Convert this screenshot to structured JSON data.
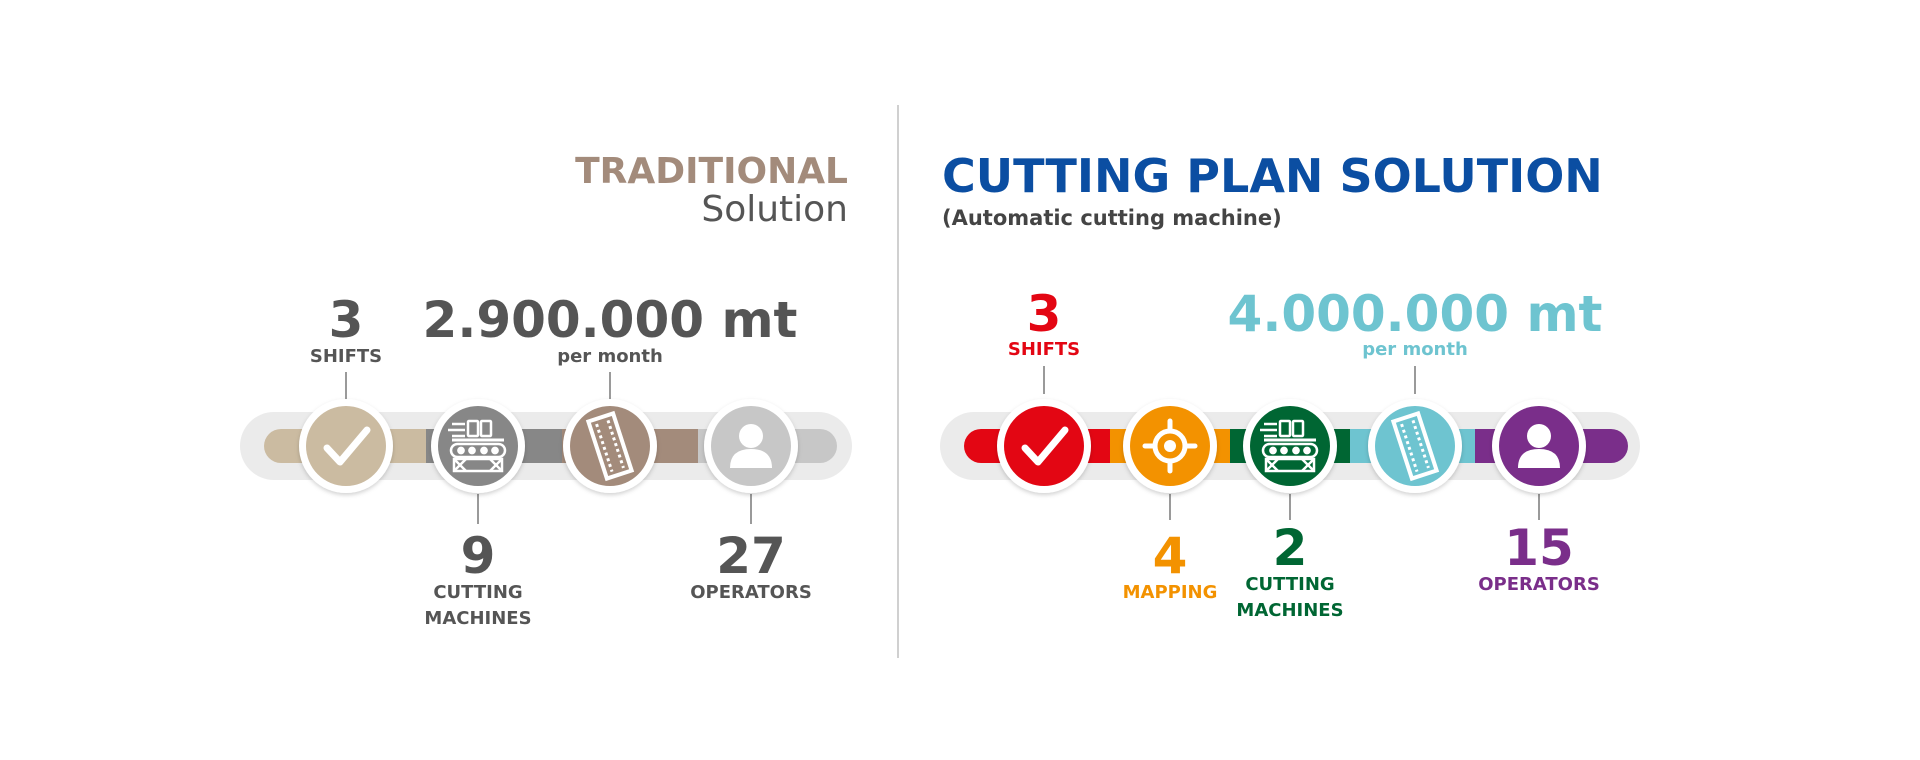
{
  "traditional": {
    "title_accent": "TRADITIONAL",
    "title_rest": "Solution",
    "colors": {
      "accent": "#A38B7B",
      "text": "#555555",
      "track": "#EBEBEB"
    },
    "icons": [
      "checkmark-icon",
      "conveyor-machine-icon",
      "fabric-roll-icon",
      "user-icon"
    ],
    "stats": {
      "shifts": {
        "value": "3",
        "label": "SHIFTS"
      },
      "output": {
        "value": "2.900.000 mt",
        "label": "per month"
      },
      "machines": {
        "value": "9",
        "label_line1": "CUTTING",
        "label_line2": "MACHINES"
      },
      "operators": {
        "value": "27",
        "label": "OPERATORS"
      }
    }
  },
  "cutting_plan": {
    "title": "CUTTING PLAN SOLUTION",
    "subtitle": "(Automatic cutting machine)",
    "colors": {
      "title": "#0B4EA2",
      "red": "#E30613",
      "orange": "#F39200",
      "green": "#006633",
      "cyan": "#6EC4D0",
      "purple": "#7A2E8A",
      "track": "#EBEBEB"
    },
    "icons": [
      "checkmark-icon",
      "target-icon",
      "conveyor-machine-icon",
      "fabric-roll-icon",
      "user-icon"
    ],
    "stats": {
      "shifts": {
        "value": "3",
        "label": "SHIFTS"
      },
      "mapping": {
        "value": "4",
        "label": "MAPPING"
      },
      "machines": {
        "value": "2",
        "label_line1": "CUTTING",
        "label_line2": "MACHINES"
      },
      "output": {
        "value": "4.000.000 mt",
        "label": "per month"
      },
      "operators": {
        "value": "15",
        "label": "OPERATORS"
      }
    }
  }
}
